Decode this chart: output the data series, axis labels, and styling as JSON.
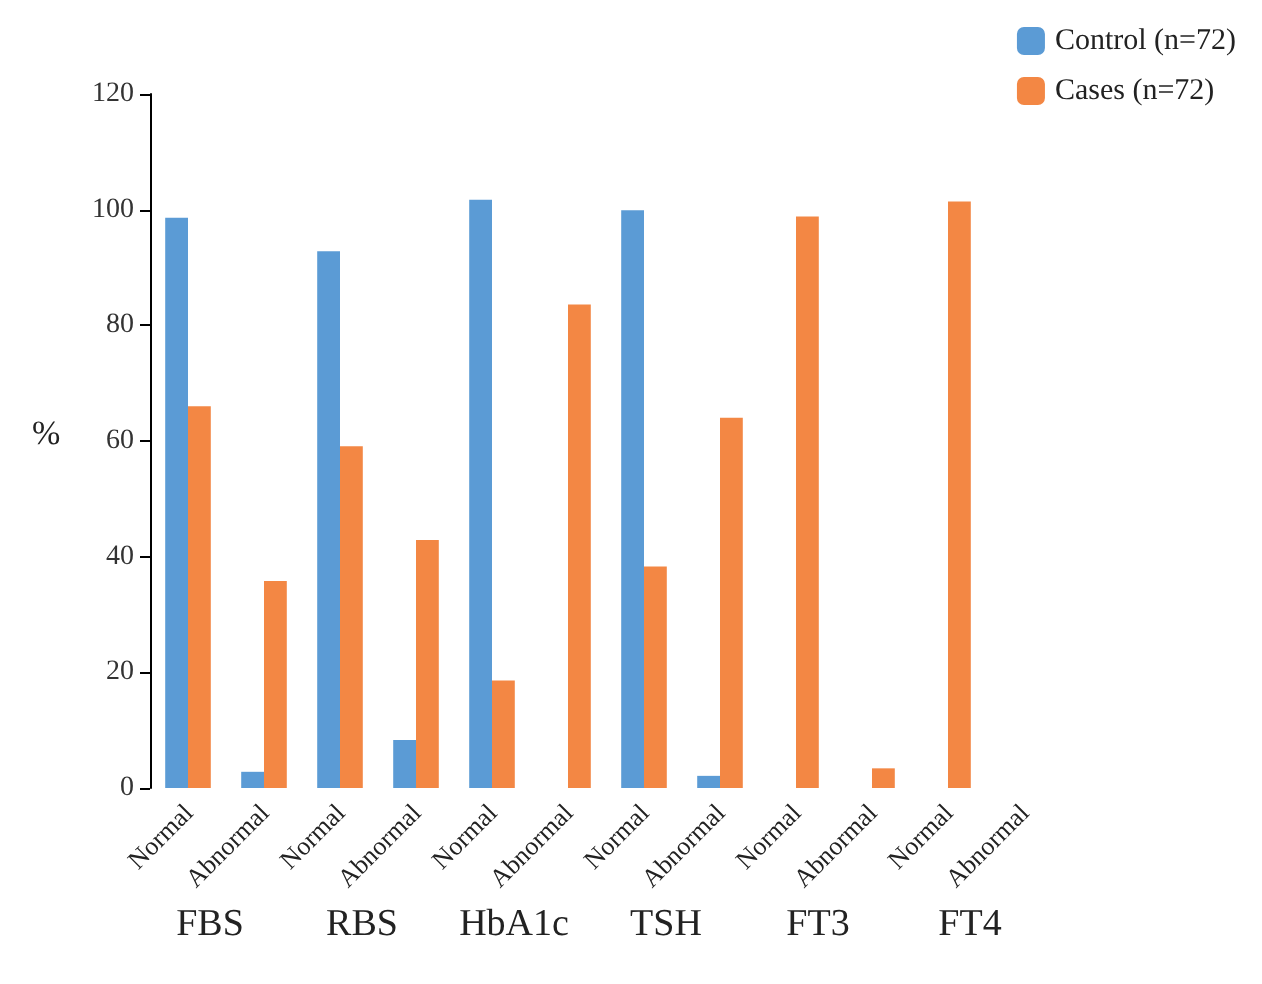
{
  "chart_data": {
    "type": "bar",
    "ylabel": "%",
    "categories": [
      "Normal",
      "Abnormal",
      "Normal",
      "Abnormal",
      "Normal",
      "Abnormal",
      "Normal",
      "Abnormal",
      "Normal",
      "Abnormal",
      "Normal",
      "Abnormal"
    ],
    "series": [
      {
        "name": "Control (n=72)",
        "color": "#5b9bd5",
        "values": [
          98.6,
          2.8,
          92.8,
          8.3,
          101.7,
          0,
          99.9,
          2.1,
          0,
          0,
          0,
          0
        ]
      },
      {
        "name": "Cases (n=72)",
        "color": "#f38744",
        "values": [
          66.0,
          35.8,
          59.1,
          42.9,
          18.6,
          83.6,
          38.3,
          64.0,
          98.8,
          3.4,
          101.4,
          0
        ]
      }
    ],
    "annotations": [
      "FBS",
      "RBS",
      "HbA1c",
      "TSH",
      "FT3",
      "FT4"
    ],
    "ylim": [
      0,
      120
    ],
    "yticks": [
      0,
      20,
      40,
      60,
      80,
      100,
      120
    ],
    "grid": false,
    "legend": "top right"
  }
}
